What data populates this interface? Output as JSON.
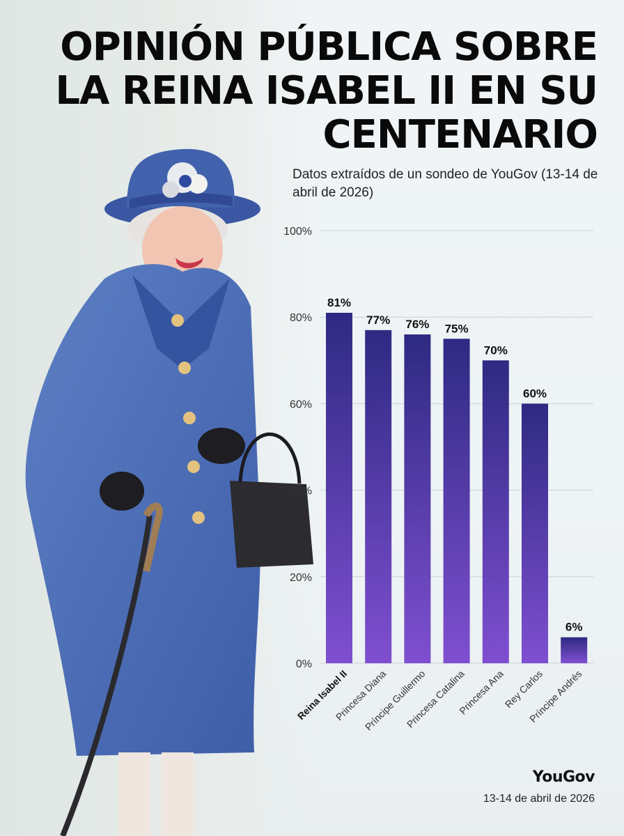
{
  "title": "OPINIÓN PÚBLICA SOBRE LA REINA ISABEL II EN SU CENTENARIO",
  "subtitle": "Datos extraídos de un sondeo de YouGov (13-14 de abril de 2026)",
  "brand": "YouGov",
  "footer_date": "13-14 de abril de 2026",
  "colors": {
    "bar_top": "#2e2a82",
    "bar_bottom": "#7f4fd0",
    "grid": "#c9d2d6",
    "text": "#111111"
  },
  "chart_data": {
    "type": "bar",
    "categories": [
      "Reina Isabel II",
      "Princesa Diana",
      "Príncipe Guillermo",
      "Princesa Catalina",
      "Princesa Ana",
      "Rey Carlos",
      "Príncipe Andrés"
    ],
    "values": [
      81,
      77,
      76,
      75,
      70,
      60,
      6
    ],
    "value_labels": [
      "81%",
      "77%",
      "76%",
      "75%",
      "70%",
      "60%",
      "6%"
    ],
    "highlight_category": "Reina Isabel II",
    "ylim": [
      0,
      100
    ],
    "yticks": [
      0,
      20,
      40,
      60,
      80,
      100
    ],
    "ytick_labels": [
      "0%",
      "20%",
      "40%",
      "60%",
      "80%",
      "100%"
    ],
    "grid": true,
    "legend": "none"
  }
}
